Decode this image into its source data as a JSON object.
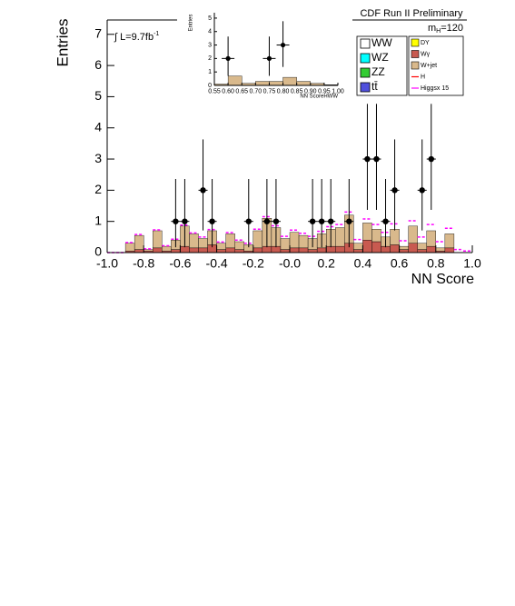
{
  "chart_data": [
    {
      "type": "histogram",
      "title": "CDF Run II Preliminary",
      "xlabel": "NN Score",
      "ylabel": "Entries",
      "lumi_label": "∫ L=9.7fb",
      "lumi_sup": "-1",
      "mass_label": "m",
      "mass_sub": "H",
      "mass_rest": "=120",
      "bins": [
        -1,
        -0.95,
        -0.9,
        -0.85,
        -0.8,
        -0.75,
        -0.7,
        -0.65,
        -0.6,
        -0.55,
        -0.5,
        -0.45,
        -0.4,
        -0.35,
        -0.3,
        -0.25,
        -0.2,
        -0.15,
        -0.1,
        -0.05,
        0,
        0.05,
        0.1,
        0.15,
        0.2,
        0.25,
        0.3,
        0.35,
        0.4,
        0.45,
        0.5,
        0.55,
        0.6,
        0.65,
        0.7,
        0.75,
        0.8,
        0.85,
        0.9,
        0.95,
        1
      ],
      "xlim": [
        -1,
        1
      ],
      "ylim": [
        0,
        7.46
      ],
      "xticks": [
        {
          "value": -1,
          "label": "-1.0"
        },
        {
          "value": -0.8,
          "label": "-0.8"
        },
        {
          "value": -0.6,
          "label": "-0.6"
        },
        {
          "value": -0.4,
          "label": "-0.4"
        },
        {
          "value": -0.2,
          "label": "-0.2"
        },
        {
          "value": 0,
          "label": "-0.0"
        },
        {
          "value": 0.2,
          "label": "0.2"
        },
        {
          "value": 0.4,
          "label": "0.4"
        },
        {
          "value": 0.6,
          "label": "0.6"
        },
        {
          "value": 0.8,
          "label": "0.8"
        },
        {
          "value": 1,
          "label": "1.0"
        }
      ],
      "yticks": [
        0,
        1,
        2,
        3,
        4,
        5,
        6,
        7
      ],
      "stacked": true,
      "series": [
        {
          "name": "Wγ",
          "color": "#c85a50",
          "values": [
            0,
            0,
            0.05,
            0.1,
            0.05,
            0.15,
            0.05,
            0.1,
            0.2,
            0.15,
            0.15,
            0.25,
            0.1,
            0.15,
            0.1,
            0.05,
            0.15,
            0.2,
            0.2,
            0.1,
            0.15,
            0.15,
            0.1,
            0.15,
            0.2,
            0.2,
            0.3,
            0.1,
            0.4,
            0.35,
            0.2,
            0.25,
            0.1,
            0.3,
            0.1,
            0.2,
            0.05,
            0.15,
            0,
            0
          ]
        },
        {
          "name": "W+jet",
          "color": "#d9b98c",
          "values": [
            0,
            0,
            0.25,
            0.45,
            0.05,
            0.55,
            0.15,
            0.3,
            0.65,
            0.45,
            0.3,
            0.45,
            0.2,
            0.45,
            0.25,
            0.2,
            0.55,
            0.9,
            0.6,
            0.35,
            0.5,
            0.4,
            0.35,
            0.45,
            0.55,
            0.6,
            0.9,
            0.2,
            0.55,
            0.4,
            0.3,
            0.5,
            0.1,
            0.55,
            0.2,
            0.5,
            0.1,
            0.45,
            0,
            0
          ]
        },
        {
          "name": "Higgsx 15",
          "color": "#ff00ff",
          "linestyle": "dashed",
          "values": [
            0,
            0,
            0.32,
            0.58,
            0.12,
            0.73,
            0.22,
            0.43,
            0.88,
            0.63,
            0.5,
            0.74,
            0.34,
            0.64,
            0.4,
            0.3,
            0.75,
            1.15,
            0.86,
            0.52,
            0.72,
            0.62,
            0.52,
            0.68,
            0.83,
            0.9,
            1.3,
            0.42,
            1.08,
            0.9,
            0.65,
            0.92,
            0.38,
            1.02,
            0.5,
            0.9,
            0.35,
            0.78,
            0.1,
            0.05
          ]
        }
      ],
      "legend_extra": [
        {
          "name": "WW",
          "color": "#ffffff"
        },
        {
          "name": "WZ",
          "color": "#00ffff"
        },
        {
          "name": "ZZ",
          "color": "#33cc33"
        },
        {
          "name": "tt̄",
          "color": "#5050dd"
        },
        {
          "name": "DY",
          "color": "#ffff00"
        },
        {
          "name": "H",
          "color": "#ff0000"
        }
      ],
      "points": {
        "x": [
          -0.625,
          -0.575,
          -0.475,
          -0.425,
          -0.225,
          -0.125,
          -0.075,
          0.125,
          0.175,
          0.225,
          0.325,
          0.425,
          0.475,
          0.525,
          0.575,
          0.725,
          0.775
        ],
        "values": [
          1,
          1,
          2,
          1,
          1,
          1,
          1,
          1,
          1,
          1,
          1,
          3,
          3,
          1,
          2,
          2,
          3
        ],
        "err_low": [
          0.83,
          0.83,
          1.29,
          0.83,
          0.83,
          0.83,
          0.83,
          0.83,
          0.83,
          0.83,
          0.83,
          1.63,
          1.63,
          0.83,
          1.29,
          1.29,
          1.63
        ],
        "err_high": [
          1.36,
          1.36,
          1.63,
          1.36,
          1.36,
          1.36,
          1.36,
          1.36,
          1.36,
          1.36,
          1.36,
          1.77,
          1.77,
          1.36,
          1.63,
          1.63,
          1.77
        ]
      }
    },
    {
      "type": "histogram",
      "xlabel": "NN ScoreHWW",
      "ylabel": "Entries",
      "bins": [
        0.55,
        0.6,
        0.65,
        0.7,
        0.75,
        0.8,
        0.85,
        0.9,
        0.95,
        1
      ],
      "xlim": [
        0.55,
        1
      ],
      "ylim": [
        0,
        5.4
      ],
      "xticks": [
        {
          "value": 0.55,
          "label": "0.55"
        },
        {
          "value": 0.6,
          "label": "0.60"
        },
        {
          "value": 0.65,
          "label": "0.65"
        },
        {
          "value": 0.7,
          "label": "0.70"
        },
        {
          "value": 0.75,
          "label": "0.75"
        },
        {
          "value": 0.8,
          "label": "0.80"
        },
        {
          "value": 0.85,
          "label": "0.85"
        },
        {
          "value": 0.9,
          "label": "0.90"
        },
        {
          "value": 0.95,
          "label": "0.95"
        },
        {
          "value": 1,
          "label": "1.00"
        }
      ],
      "yticks": [
        0,
        1,
        2,
        3,
        4,
        5
      ],
      "color": "#d9b98c",
      "values": [
        0.1,
        0.7,
        0.15,
        0.3,
        0.3,
        0.6,
        0.3,
        0.15,
        0.05
      ],
      "points": {
        "x": [
          0.6,
          0.75,
          0.8
        ],
        "values": [
          2,
          2,
          3
        ],
        "err_low": [
          1.29,
          1.29,
          1.63
        ],
        "err_high": [
          1.63,
          1.63,
          1.77
        ]
      }
    }
  ]
}
